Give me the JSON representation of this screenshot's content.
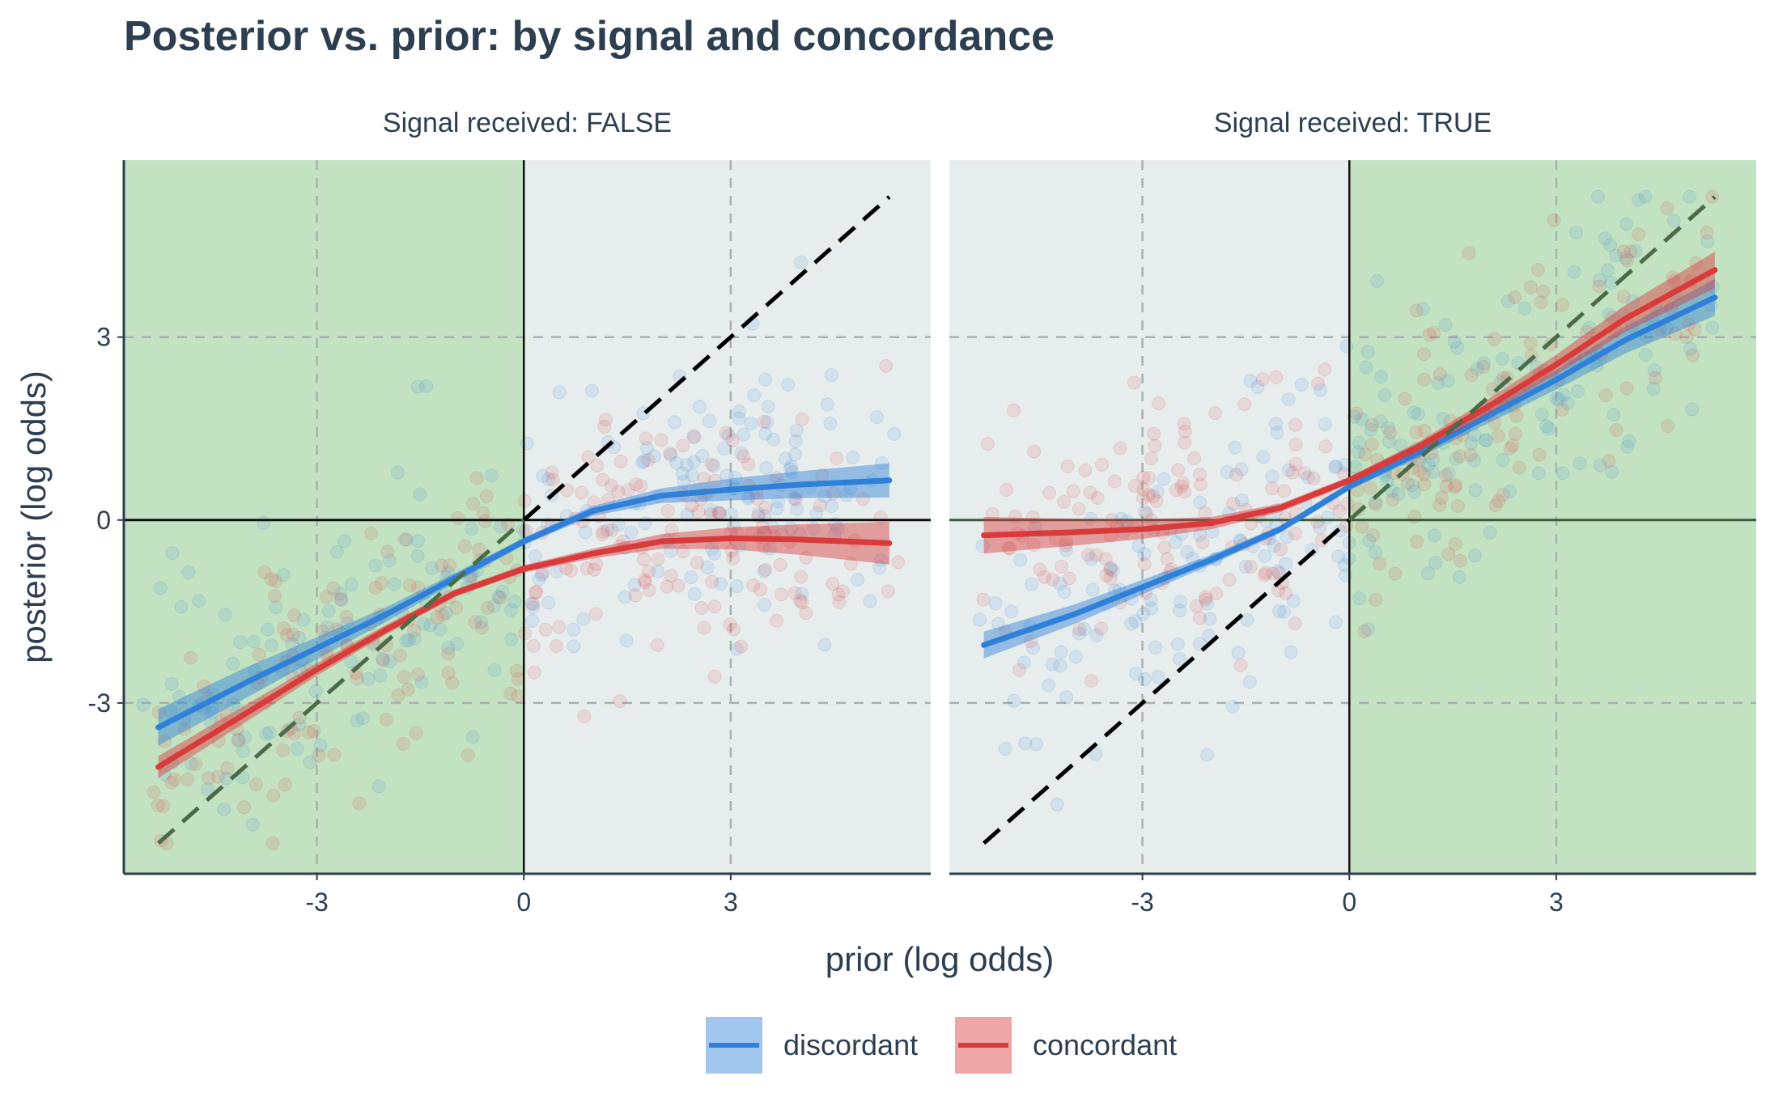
{
  "chart_data": {
    "type": "scatter",
    "title": "Posterior vs. prior: by signal and concordance",
    "xlabel": "prior (log odds)",
    "ylabel": "posterior (log odds)",
    "xlim": [
      -5.8,
      5.9
    ],
    "ylim": [
      -5.8,
      5.9
    ],
    "x_ticks": [
      -3,
      0,
      3
    ],
    "x_tick_labels": [
      "-3",
      "0",
      "3"
    ],
    "y_ticks": [
      -3,
      0,
      3
    ],
    "y_tick_labels": [
      "-3",
      "0",
      "3"
    ],
    "grid": true,
    "legend_position": "bottom",
    "colors": {
      "discordant": "#2f80d8",
      "concordant": "#d93a3a",
      "discordant_shaded": "#5ba8c8",
      "concordant_shaded": "#d67a55",
      "region_shade": "#c3e2c1",
      "panel_bg": "#e7eded",
      "axis": "#2c3e50"
    },
    "legend": [
      {
        "key": "discordant",
        "label": "discordant",
        "color": "#2f80d8"
      },
      {
        "key": "concordant",
        "label": "concordant",
        "color": "#d93a3a"
      }
    ],
    "panels": [
      {
        "strip_label": "Signal received: FALSE",
        "shaded_x_range": [
          -5.8,
          0
        ],
        "identity_segments": [
          {
            "x": [
              -5.3,
              0
            ],
            "style": "dark-green-dashed"
          },
          {
            "x": [
              0,
              5.3
            ],
            "style": "black-dashed"
          }
        ],
        "series": [
          {
            "name": "discordant",
            "x": [
              -5.3,
              -4,
              -3,
              -2,
              -1,
              0,
              1,
              2,
              3,
              4,
              5.3
            ],
            "y": [
              -3.4,
              -2.65,
              -2.1,
              -1.55,
              -0.95,
              -0.35,
              0.15,
              0.4,
              0.5,
              0.58,
              0.65
            ],
            "band": [
              0.3,
              0.25,
              0.18,
              0.12,
              0.08,
              0.06,
              0.08,
              0.12,
              0.18,
              0.22,
              0.28
            ]
          },
          {
            "name": "concordant",
            "x": [
              -5.3,
              -4,
              -3,
              -2,
              -1,
              0,
              1,
              2,
              3,
              4,
              5.3
            ],
            "y": [
              -4.05,
              -3.15,
              -2.45,
              -1.8,
              -1.2,
              -0.8,
              -0.55,
              -0.35,
              -0.3,
              -0.32,
              -0.38
            ],
            "band": [
              0.18,
              0.14,
              0.1,
              0.08,
              0.06,
              0.06,
              0.08,
              0.12,
              0.18,
              0.25,
              0.35
            ]
          }
        ]
      },
      {
        "strip_label": "Signal received: TRUE",
        "shaded_x_range": [
          0,
          5.9
        ],
        "identity_segments": [
          {
            "x": [
              -5.3,
              0
            ],
            "style": "black-dashed"
          },
          {
            "x": [
              0,
              5.3
            ],
            "style": "dark-green-dashed"
          }
        ],
        "series": [
          {
            "name": "discordant",
            "x": [
              -5.3,
              -4,
              -3,
              -2,
              -1,
              0,
              1,
              2,
              3,
              4,
              5.3
            ],
            "y": [
              -2.05,
              -1.55,
              -1.1,
              -0.65,
              -0.15,
              0.55,
              1.1,
              1.7,
              2.3,
              2.95,
              3.65
            ],
            "band": [
              0.22,
              0.16,
              0.12,
              0.08,
              0.06,
              0.06,
              0.08,
              0.12,
              0.16,
              0.22,
              0.3
            ]
          },
          {
            "name": "concordant",
            "x": [
              -5.3,
              -4,
              -3,
              -2,
              -1,
              0,
              1,
              2,
              3,
              4,
              5.3
            ],
            "y": [
              -0.25,
              -0.2,
              -0.15,
              -0.05,
              0.2,
              0.65,
              1.2,
              1.85,
              2.55,
              3.3,
              4.1
            ],
            "band": [
              0.3,
              0.22,
              0.16,
              0.1,
              0.07,
              0.06,
              0.08,
              0.12,
              0.16,
              0.22,
              0.3
            ]
          }
        ]
      }
    ]
  }
}
